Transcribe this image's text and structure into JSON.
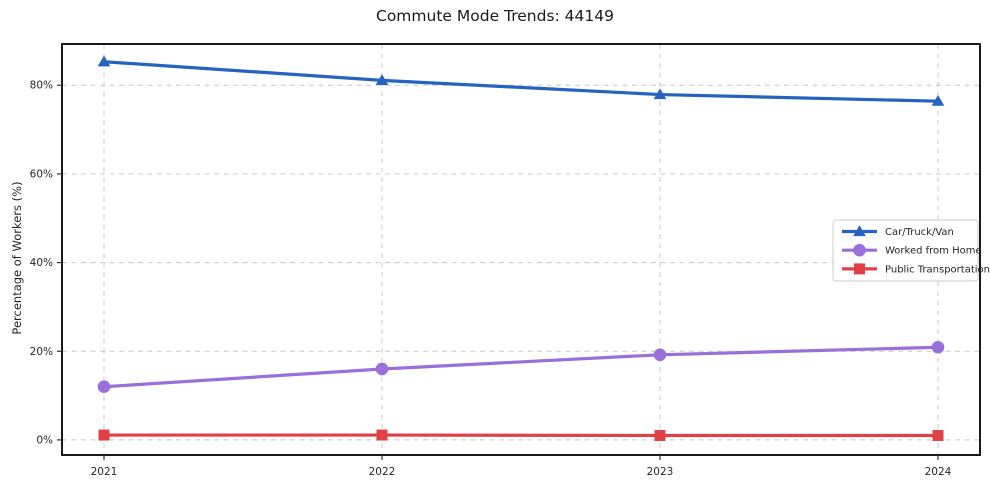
{
  "chart_data": {
    "type": "line",
    "title": "Commute Mode Trends: 44149",
    "xlabel": "",
    "ylabel": "Percentage of Workers (%)",
    "x": [
      2021,
      2022,
      2023,
      2024
    ],
    "xticklabels": [
      "2021",
      "2022",
      "2023",
      "2024"
    ],
    "yticks": [
      0,
      20,
      40,
      60,
      80
    ],
    "yticklabels": [
      "0%",
      "20%",
      "40%",
      "60%",
      "80%"
    ],
    "ylim": [
      -3.4,
      89.3
    ],
    "grid": true,
    "grid_style": "dashed",
    "legend_position": "center right",
    "colors": {
      "grid": "#c9c9c9",
      "axis": "#000000",
      "text": "#262626"
    },
    "series": [
      {
        "name": "Car/Truck/Van",
        "marker": "triangle",
        "color": "#2563bf",
        "values": [
          85.3,
          81.1,
          77.9,
          76.4
        ]
      },
      {
        "name": "Worked from Home",
        "marker": "circle",
        "color": "#9b6fd9",
        "values": [
          12.0,
          16.0,
          19.2,
          20.9
        ]
      },
      {
        "name": "Public Transportation",
        "marker": "square",
        "color": "#e04146",
        "values": [
          1.1,
          1.1,
          1.0,
          1.0
        ]
      }
    ]
  }
}
